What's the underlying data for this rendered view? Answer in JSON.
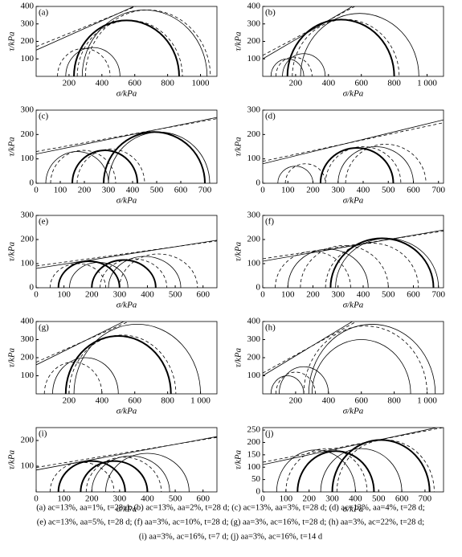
{
  "chart_data": [
    {
      "type": "mohr",
      "label": "(a)",
      "xlabel": "σ/kPa",
      "ylabel": "τ/kPa",
      "xlim": [
        0,
        1100
      ],
      "xticks": [
        200,
        400,
        600,
        800,
        1000
      ],
      "ylim": [
        0,
        400
      ],
      "yticks": [
        100,
        200,
        300,
        400
      ],
      "circles": [
        {
          "s3": 130,
          "s1": 450,
          "style": "dashed"
        },
        {
          "s3": 180,
          "s1": 510,
          "style": "solid"
        },
        {
          "s3": 230,
          "s1": 870,
          "style": "bold"
        },
        {
          "s3": 250,
          "s1": 890,
          "style": "dashed"
        },
        {
          "s3": 280,
          "s1": 1040,
          "style": "solid"
        },
        {
          "s3": 300,
          "s1": 1060,
          "style": "dashed"
        }
      ],
      "envelopes": [
        {
          "c": 150,
          "slope": 0.42,
          "style": "solid"
        },
        {
          "c": 170,
          "slope": 0.38,
          "style": "dashed"
        }
      ]
    },
    {
      "type": "mohr",
      "label": "(b)",
      "xlabel": "σ/kPa",
      "ylabel": "τ/kPa",
      "xlim": [
        0,
        1100
      ],
      "xticks": [
        200,
        400,
        600,
        800,
        {
          "value": 1000,
          "label": "1 000"
        }
      ],
      "ylim": [
        0,
        400
      ],
      "yticks": [
        100,
        200,
        300,
        400
      ],
      "circles": [
        {
          "s3": 50,
          "s1": 250,
          "style": "solid"
        },
        {
          "s3": 80,
          "s1": 300,
          "style": "dashed"
        },
        {
          "s3": 120,
          "s1": 380,
          "style": "solid"
        },
        {
          "s3": 150,
          "s1": 800,
          "style": "bold"
        },
        {
          "s3": 180,
          "s1": 830,
          "style": "dashed"
        },
        {
          "s3": 230,
          "s1": 950,
          "style": "solid"
        }
      ],
      "envelopes": [
        {
          "c": 100,
          "slope": 0.55,
          "style": "solid"
        },
        {
          "c": 120,
          "slope": 0.5,
          "style": "dashed"
        }
      ]
    },
    {
      "type": "mohr",
      "label": "(c)",
      "xlabel": "σ/kPa",
      "ylabel": "τ/kPa",
      "xlim": [
        0,
        750
      ],
      "xticks": [
        0,
        100,
        200,
        300,
        400,
        500,
        600,
        700
      ],
      "ylim": [
        0,
        300
      ],
      "yticks": [
        0,
        100,
        200,
        300
      ],
      "circles": [
        {
          "s3": 40,
          "s1": 300,
          "style": "solid"
        },
        {
          "s3": 60,
          "s1": 330,
          "style": "dashed"
        },
        {
          "s3": 150,
          "s1": 420,
          "style": "bold"
        },
        {
          "s3": 170,
          "s1": 450,
          "style": "dashed"
        },
        {
          "s3": 280,
          "s1": 700,
          "style": "bold"
        },
        {
          "s3": 300,
          "s1": 720,
          "style": "solid"
        }
      ],
      "envelopes": [
        {
          "c": 120,
          "slope": 0.2,
          "style": "solid"
        },
        {
          "c": 130,
          "slope": 0.18,
          "style": "dashed"
        }
      ]
    },
    {
      "type": "mohr",
      "label": "(d)",
      "xlabel": "σ/kPa",
      "ylabel": "τ/kPa",
      "xlim": [
        0,
        720
      ],
      "xticks": [
        0,
        100,
        200,
        300,
        400,
        500,
        600,
        700
      ],
      "ylim": [
        0,
        300
      ],
      "yticks": [
        0,
        100,
        200,
        300
      ],
      "circles": [
        {
          "s3": 60,
          "s1": 200,
          "style": "solid"
        },
        {
          "s3": 90,
          "s1": 250,
          "style": "dashed"
        },
        {
          "s3": 230,
          "s1": 520,
          "style": "bold"
        },
        {
          "s3": 250,
          "s1": 550,
          "style": "dashed"
        },
        {
          "s3": 300,
          "s1": 600,
          "style": "solid"
        },
        {
          "s3": 330,
          "s1": 650,
          "style": "dashed"
        }
      ],
      "envelopes": [
        {
          "c": 80,
          "slope": 0.25,
          "style": "solid"
        },
        {
          "c": 90,
          "slope": 0.22,
          "style": "dashed"
        }
      ]
    },
    {
      "type": "mohr",
      "label": "(e)",
      "xlabel": "σ/kPa",
      "ylabel": "τ/kPa",
      "xlim": [
        0,
        650
      ],
      "xticks": [
        0,
        100,
        200,
        300,
        400,
        500,
        600
      ],
      "ylim": [
        0,
        300
      ],
      "yticks": [
        0,
        100,
        200,
        300
      ],
      "circles": [
        {
          "s3": 50,
          "s1": 250,
          "style": "dashed"
        },
        {
          "s3": 80,
          "s1": 300,
          "style": "bold"
        },
        {
          "s3": 120,
          "s1": 330,
          "style": "solid"
        },
        {
          "s3": 200,
          "s1": 430,
          "style": "bold"
        },
        {
          "s3": 230,
          "s1": 470,
          "style": "dashed"
        },
        {
          "s3": 260,
          "s1": 520,
          "style": "solid"
        },
        {
          "s3": 300,
          "s1": 580,
          "style": "dashed"
        }
      ],
      "envelopes": [
        {
          "c": 80,
          "slope": 0.18,
          "style": "solid"
        },
        {
          "c": 90,
          "slope": 0.16,
          "style": "dashed"
        }
      ]
    },
    {
      "type": "mohr",
      "label": "(f)",
      "xlabel": "σ/kPa",
      "ylabel": "τ/kPa",
      "xlim": [
        0,
        720
      ],
      "xticks": [
        0,
        100,
        200,
        300,
        400,
        500,
        600,
        700
      ],
      "ylim": [
        0,
        300
      ],
      "yticks": [
        0,
        100,
        200,
        300
      ],
      "circles": [
        {
          "s3": 50,
          "s1": 350,
          "style": "dashed"
        },
        {
          "s3": 100,
          "s1": 420,
          "style": "solid"
        },
        {
          "s3": 150,
          "s1": 500,
          "style": "dashed"
        },
        {
          "s3": 250,
          "s1": 620,
          "style": "dashed"
        },
        {
          "s3": 270,
          "s1": 680,
          "style": "bold"
        },
        {
          "s3": 290,
          "s1": 700,
          "style": "solid"
        }
      ],
      "envelopes": [
        {
          "c": 110,
          "slope": 0.18,
          "style": "solid"
        },
        {
          "c": 120,
          "slope": 0.16,
          "style": "dashed"
        }
      ]
    },
    {
      "type": "mohr",
      "label": "(g)",
      "xlabel": "σ/kPa",
      "ylabel": "τ/kPa",
      "xlim": [
        0,
        1100
      ],
      "xticks": [
        200,
        400,
        600,
        800,
        {
          "value": 1000,
          "label": "1 000"
        }
      ],
      "ylim": [
        0,
        400
      ],
      "yticks": [
        100,
        200,
        300,
        400
      ],
      "circles": [
        {
          "s3": 50,
          "s1": 400,
          "style": "dashed"
        },
        {
          "s3": 100,
          "s1": 500,
          "style": "solid"
        },
        {
          "s3": 180,
          "s1": 820,
          "style": "bold"
        },
        {
          "s3": 200,
          "s1": 850,
          "style": "dashed"
        },
        {
          "s3": 230,
          "s1": 1000,
          "style": "solid"
        }
      ],
      "envelopes": [
        {
          "c": 160,
          "slope": 0.45,
          "style": "solid"
        },
        {
          "c": 175,
          "slope": 0.4,
          "style": "dashed"
        }
      ]
    },
    {
      "type": "mohr",
      "label": "(h)",
      "xlabel": "σ/kPa",
      "ylabel": "τ/kPa",
      "xlim": [
        0,
        1100
      ],
      "xticks": [
        200,
        400,
        600,
        800,
        {
          "value": 1000,
          "label": "1 000"
        }
      ],
      "ylim": [
        0,
        400
      ],
      "yticks": [
        100,
        200,
        300,
        400
      ],
      "circles": [
        {
          "s3": 50,
          "s1": 250,
          "style": "solid"
        },
        {
          "s3": 80,
          "s1": 320,
          "style": "dashed"
        },
        {
          "s3": 100,
          "s1": 400,
          "style": "solid"
        },
        {
          "s3": 250,
          "s1": 1000,
          "style": "dashed"
        },
        {
          "s3": 280,
          "s1": 1050,
          "style": "solid"
        },
        {
          "s3": 300,
          "s1": 900,
          "style": "solid"
        }
      ],
      "envelopes": [
        {
          "c": 100,
          "slope": 0.55,
          "style": "solid"
        },
        {
          "c": 115,
          "slope": 0.5,
          "style": "dashed"
        }
      ]
    },
    {
      "type": "mohr",
      "label": "(i)",
      "xlabel": "σ/kPa",
      "ylabel": "τ/kPa",
      "xlim": [
        0,
        650
      ],
      "xticks": [
        0,
        100,
        200,
        300,
        400,
        500,
        600
      ],
      "ylim": [
        0,
        250
      ],
      "yticks": [
        100,
        200
      ],
      "circles": [
        {
          "s3": 50,
          "s1": 280,
          "style": "dashed"
        },
        {
          "s3": 80,
          "s1": 320,
          "style": "bold"
        },
        {
          "s3": 160,
          "s1": 400,
          "style": "bold"
        },
        {
          "s3": 180,
          "s1": 450,
          "style": "dashed"
        },
        {
          "s3": 200,
          "s1": 480,
          "style": "solid"
        },
        {
          "s3": 250,
          "s1": 550,
          "style": "solid"
        }
      ],
      "envelopes": [
        {
          "c": 85,
          "slope": 0.2,
          "style": "solid"
        },
        {
          "c": 95,
          "slope": 0.18,
          "style": "dashed"
        }
      ]
    },
    {
      "type": "mohr",
      "label": "(j)",
      "xlabel": "σ/kPa",
      "ylabel": "τ/kPa",
      "xlim": [
        0,
        780
      ],
      "xticks": [
        0,
        100,
        200,
        300,
        400,
        500,
        600,
        700
      ],
      "ylim": [
        0,
        260
      ],
      "yticks": [
        0,
        50,
        100,
        150,
        200,
        250
      ],
      "circles": [
        {
          "s3": 60,
          "s1": 400,
          "style": "solid"
        },
        {
          "s3": 100,
          "s1": 450,
          "style": "dashed"
        },
        {
          "s3": 150,
          "s1": 480,
          "style": "bold"
        },
        {
          "s3": 250,
          "s1": 600,
          "style": "solid"
        },
        {
          "s3": 300,
          "s1": 720,
          "style": "bold"
        },
        {
          "s3": 320,
          "s1": 740,
          "style": "dashed"
        }
      ],
      "envelopes": [
        {
          "c": 110,
          "slope": 0.2,
          "style": "solid"
        },
        {
          "c": 120,
          "slope": 0.18,
          "style": "dashed"
        }
      ]
    }
  ],
  "caption": [
    "(a) ac=13%, aa=1%, t=28 d; (b) ac=13%, aa=2%, t=28 d; (c) ac=13%, aa=3%, t=28 d; (d) ac=13%, aa=4%, t=28 d;",
    "(e) ac=13%, aa=5%, t=28 d; (f) aa=3%, ac=10%, t=28 d; (g) aa=3%, ac=16%, t=28 d; (h) aa=3%, ac=22%, t=28 d;",
    "(i) aa=3%, ac=16%, t=7 d; (j) aa=3%, ac=16%, t=14 d"
  ]
}
